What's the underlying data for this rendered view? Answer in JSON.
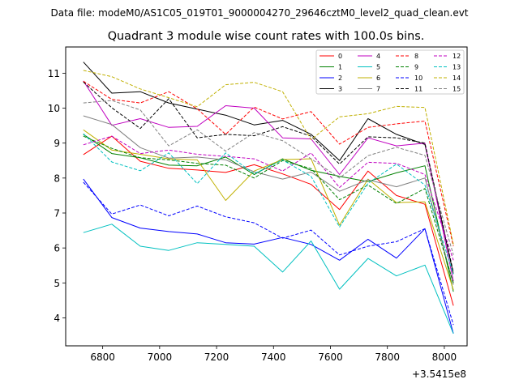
{
  "figure": {
    "suptitle": "Data file: modeM0/AS1C05_019T01_9000004270_29646cztM0_level2_quad_clean.evt"
  },
  "chart_data": {
    "type": "line",
    "title": "Quadrant 3 module wise count rates with 100.0s bins.",
    "xlabel": "",
    "ylabel": "",
    "x_offset_label": "+3.5415e8",
    "xlim": [
      6670,
      8080
    ],
    "ylim": [
      3.2,
      11.75
    ],
    "xticks": [
      6800,
      7000,
      7200,
      7400,
      7600,
      7800,
      8000
    ],
    "yticks": [
      4,
      5,
      6,
      7,
      8,
      9,
      10,
      11
    ],
    "grid": false,
    "legend_position": "top-right",
    "x": [
      6732,
      6832,
      6932,
      7032,
      7132,
      7232,
      7332,
      7432,
      7532,
      7632,
      7732,
      7832,
      7932,
      8032
    ],
    "series": [
      {
        "name": "0",
        "color": "#ff0000",
        "dashed": false,
        "values": [
          8.67,
          9.2,
          8.48,
          8.28,
          8.23,
          8.16,
          8.38,
          8.12,
          7.82,
          7.1,
          8.2,
          7.5,
          7.25,
          4.35
        ]
      },
      {
        "name": "1",
        "color": "#008000",
        "dashed": false,
        "values": [
          9.25,
          8.7,
          8.58,
          8.37,
          8.35,
          8.6,
          8.1,
          8.55,
          8.22,
          8.05,
          7.9,
          8.15,
          8.35,
          4.75
        ]
      },
      {
        "name": "2",
        "color": "#0000ff",
        "dashed": false,
        "values": [
          7.97,
          6.87,
          6.57,
          6.47,
          6.4,
          6.15,
          6.11,
          6.3,
          6.1,
          5.65,
          6.25,
          5.71,
          6.55,
          3.55
        ]
      },
      {
        "name": "3",
        "color": "#000000",
        "dashed": false,
        "values": [
          11.32,
          10.43,
          10.47,
          10.15,
          9.97,
          9.8,
          9.52,
          9.65,
          9.25,
          8.5,
          9.7,
          9.25,
          8.96,
          5.25
        ]
      },
      {
        "name": "4",
        "color": "#c000c0",
        "dashed": false,
        "values": [
          10.78,
          9.51,
          9.7,
          9.45,
          9.48,
          10.07,
          10.0,
          9.15,
          9.12,
          8.1,
          9.15,
          8.92,
          9.0,
          5.05
        ]
      },
      {
        "name": "5",
        "color": "#00c0c0",
        "dashed": false,
        "values": [
          6.44,
          6.68,
          6.05,
          5.93,
          6.15,
          6.1,
          6.05,
          5.31,
          6.2,
          4.82,
          5.7,
          5.2,
          5.51,
          3.55
        ]
      },
      {
        "name": "6",
        "color": "#c0b000",
        "dashed": false,
        "values": [
          9.38,
          8.8,
          8.68,
          8.55,
          8.52,
          7.36,
          8.2,
          8.53,
          8.55,
          6.65,
          7.97,
          7.3,
          7.32,
          4.8
        ]
      },
      {
        "name": "7",
        "color": "#808080",
        "dashed": false,
        "values": [
          9.78,
          9.53,
          8.87,
          8.57,
          8.6,
          8.52,
          8.18,
          7.97,
          8.17,
          7.62,
          7.95,
          7.75,
          8.0,
          4.95
        ]
      },
      {
        "name": "8",
        "color": "#ff0000",
        "dashed": true,
        "values": [
          10.77,
          10.25,
          10.15,
          10.47,
          9.98,
          9.25,
          10.03,
          9.69,
          9.9,
          8.97,
          9.45,
          9.55,
          9.63,
          6.05
        ]
      },
      {
        "name": "9",
        "color": "#008000",
        "dashed": true,
        "values": [
          9.2,
          8.85,
          8.58,
          8.52,
          8.42,
          8.37,
          8.0,
          8.5,
          8.27,
          7.38,
          7.8,
          7.27,
          7.7,
          5.0
        ]
      },
      {
        "name": "10",
        "color": "#0000ff",
        "dashed": true,
        "values": [
          7.88,
          6.97,
          7.23,
          6.92,
          7.2,
          6.89,
          6.72,
          6.28,
          6.51,
          5.8,
          6.05,
          6.18,
          6.55,
          3.8
        ]
      },
      {
        "name": "11",
        "color": "#000000",
        "dashed": true,
        "values": [
          10.75,
          10.01,
          9.42,
          10.27,
          9.15,
          9.25,
          9.21,
          9.47,
          9.2,
          8.4,
          9.18,
          9.15,
          9.0,
          5.3
        ]
      },
      {
        "name": "12",
        "color": "#c000c0",
        "dashed": true,
        "values": [
          8.95,
          9.2,
          8.7,
          8.8,
          8.68,
          8.62,
          8.55,
          8.2,
          8.72,
          7.73,
          8.45,
          8.42,
          8.1,
          5.65
        ]
      },
      {
        "name": "13",
        "color": "#00c0c0",
        "dashed": true,
        "values": [
          9.27,
          8.46,
          8.21,
          8.72,
          7.84,
          8.72,
          8.12,
          8.52,
          8.05,
          6.6,
          7.85,
          8.4,
          7.8,
          5.25
        ]
      },
      {
        "name": "14",
        "color": "#c0b000",
        "dashed": true,
        "values": [
          11.08,
          10.9,
          10.55,
          10.3,
          10.04,
          10.67,
          10.74,
          10.47,
          9.1,
          9.75,
          9.84,
          10.05,
          10.02,
          6.1
        ]
      },
      {
        "name": "15",
        "color": "#808080",
        "dashed": true,
        "values": [
          10.15,
          10.22,
          9.95,
          8.92,
          9.38,
          8.77,
          9.3,
          9.07,
          8.55,
          8.0,
          8.64,
          8.88,
          8.65,
          5.8
        ]
      }
    ]
  }
}
